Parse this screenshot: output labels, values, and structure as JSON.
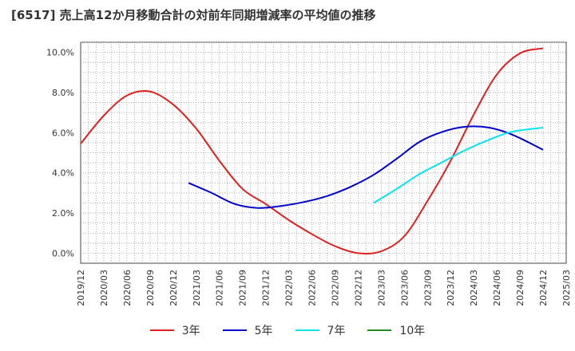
{
  "title": "[6517]  売上高12か月移動合計の対前年同期増減率の平均値の推移",
  "chart_data": {
    "type": "line",
    "ylim": [
      -0.5,
      10.5
    ],
    "yticks": [
      0,
      2,
      4,
      6,
      8,
      10
    ],
    "ytick_labels": [
      "0.0%",
      "2.0%",
      "4.0%",
      "6.0%",
      "8.0%",
      "10.0%"
    ],
    "xlim": [
      "2019-12",
      "2025-03"
    ],
    "xtick_labels": [
      "2019/12",
      "2020/03",
      "2020/06",
      "2020/09",
      "2020/12",
      "2021/03",
      "2021/06",
      "2021/09",
      "2021/12",
      "2022/03",
      "2022/06",
      "2022/09",
      "2022/12",
      "2023/03",
      "2023/06",
      "2023/09",
      "2023/12",
      "2024/03",
      "2024/06",
      "2024/09",
      "2024/12",
      "2025/03"
    ],
    "grid": true,
    "legend_position": "bottom",
    "series": [
      {
        "name": "3年",
        "color": "#e02020",
        "points": [
          [
            "2019-12",
            5.45
          ],
          [
            "2020-03",
            6.85
          ],
          [
            "2020-06",
            7.85
          ],
          [
            "2020-09",
            8.05
          ],
          [
            "2020-12",
            7.4
          ],
          [
            "2021-03",
            6.2
          ],
          [
            "2021-06",
            4.6
          ],
          [
            "2021-09",
            3.2
          ],
          [
            "2021-12",
            2.45
          ],
          [
            "2022-03",
            1.65
          ],
          [
            "2022-06",
            0.95
          ],
          [
            "2022-09",
            0.35
          ],
          [
            "2022-12",
            0.0
          ],
          [
            "2023-03",
            0.1
          ],
          [
            "2023-06",
            0.85
          ],
          [
            "2023-09",
            2.6
          ],
          [
            "2023-12",
            4.6
          ],
          [
            "2024-03",
            6.9
          ],
          [
            "2024-06",
            8.9
          ],
          [
            "2024-09",
            9.95
          ],
          [
            "2024-12",
            10.2
          ]
        ]
      },
      {
        "name": "5年",
        "color": "#0000cc",
        "points": [
          [
            "2021-02",
            3.5
          ],
          [
            "2021-05",
            3.0
          ],
          [
            "2021-08",
            2.45
          ],
          [
            "2021-11",
            2.25
          ],
          [
            "2022-02",
            2.35
          ],
          [
            "2022-05",
            2.55
          ],
          [
            "2022-08",
            2.85
          ],
          [
            "2022-11",
            3.3
          ],
          [
            "2023-02",
            3.9
          ],
          [
            "2023-05",
            4.7
          ],
          [
            "2023-08",
            5.55
          ],
          [
            "2023-11",
            6.05
          ],
          [
            "2024-02",
            6.3
          ],
          [
            "2024-05",
            6.25
          ],
          [
            "2024-08",
            5.9
          ],
          [
            "2024-12",
            5.15
          ]
        ]
      },
      {
        "name": "7年",
        "color": "#00e5ee",
        "points": [
          [
            "2023-02",
            2.5
          ],
          [
            "2023-05",
            3.2
          ],
          [
            "2023-08",
            3.95
          ],
          [
            "2023-11",
            4.55
          ],
          [
            "2024-02",
            5.15
          ],
          [
            "2024-05",
            5.65
          ],
          [
            "2024-08",
            6.05
          ],
          [
            "2024-12",
            6.25
          ]
        ]
      },
      {
        "name": "10年",
        "color": "#228b22",
        "points": []
      }
    ]
  }
}
